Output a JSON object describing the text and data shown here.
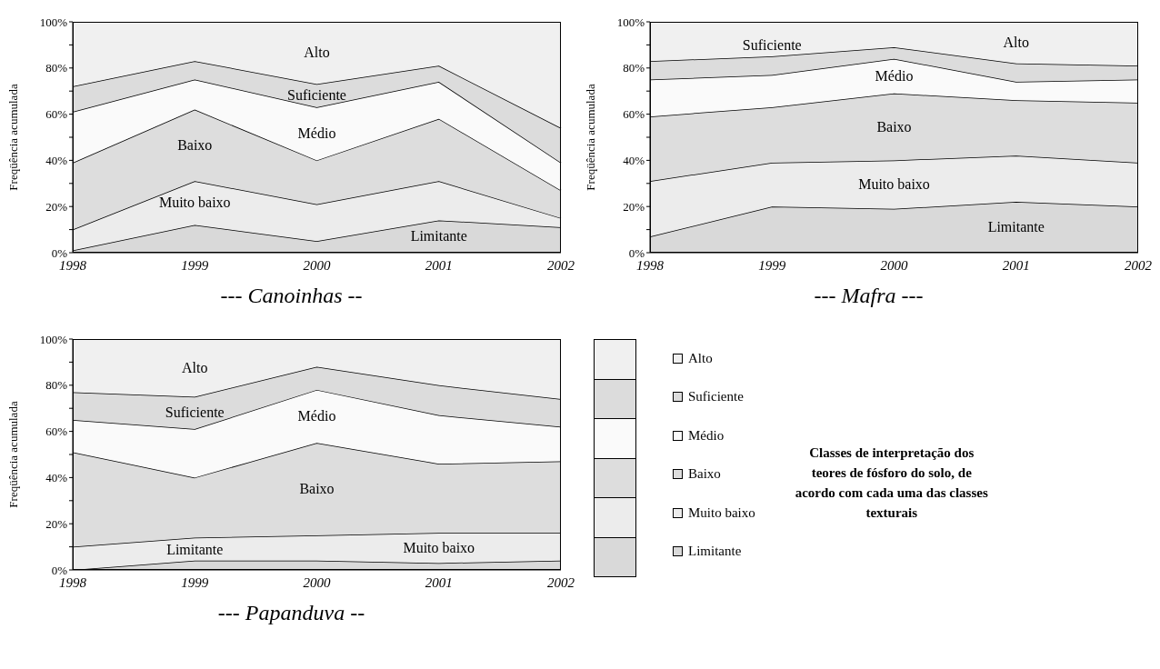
{
  "chart_data": [
    {
      "type": "area",
      "title": "--- Canoinhas --",
      "ylabel": "Freqüência acumulada",
      "stacked": true,
      "categories": [
        "1998",
        "1999",
        "2000",
        "2001",
        "2002"
      ],
      "ylim": [
        0,
        100
      ],
      "yticks": [
        {
          "value": 0,
          "label": "0%"
        },
        {
          "value": 10,
          "label": null
        },
        {
          "value": 20,
          "label": "20%"
        },
        {
          "value": 30,
          "label": null
        },
        {
          "value": 40,
          "label": "40%"
        },
        {
          "value": 50,
          "label": null
        },
        {
          "value": 60,
          "label": "60%"
        },
        {
          "value": 70,
          "label": null
        },
        {
          "value": 80,
          "label": "80%"
        },
        {
          "value": 90,
          "label": null
        },
        {
          "value": 100,
          "label": "100%"
        }
      ],
      "grid": false,
      "legend": false,
      "series": [
        {
          "name": "Limitante",
          "color": "#d9d9d9",
          "values": [
            1,
            12,
            5,
            14,
            11
          ]
        },
        {
          "name": "Muito baixo",
          "color": "#ececec",
          "values": [
            9,
            19,
            16,
            17,
            4
          ]
        },
        {
          "name": "Baixo",
          "color": "#dddddd",
          "values": [
            29,
            31,
            19,
            27,
            12
          ]
        },
        {
          "name": "Médio",
          "color": "#fafafa",
          "values": [
            22,
            13,
            23,
            16,
            12
          ]
        },
        {
          "name": "Suficiente",
          "color": "#dcdcdc",
          "values": [
            11,
            8,
            10,
            7,
            15
          ]
        },
        {
          "name": "Alto",
          "color": "#f0f0f0",
          "values": [
            28,
            17,
            27,
            19,
            46
          ]
        }
      ]
    },
    {
      "type": "area",
      "title": "--- Mafra ---",
      "ylabel": "Freqüência acumulada",
      "stacked": true,
      "categories": [
        "1998",
        "1999",
        "2000",
        "2001",
        "2002"
      ],
      "ylim": [
        0,
        100
      ],
      "yticks": [
        {
          "value": 0,
          "label": "0%"
        },
        {
          "value": 10,
          "label": null
        },
        {
          "value": 20,
          "label": "20%"
        },
        {
          "value": 30,
          "label": null
        },
        {
          "value": 40,
          "label": "40%"
        },
        {
          "value": 50,
          "label": null
        },
        {
          "value": 60,
          "label": "60%"
        },
        {
          "value": 70,
          "label": null
        },
        {
          "value": 80,
          "label": "80%"
        },
        {
          "value": 90,
          "label": null
        },
        {
          "value": 100,
          "label": "100%"
        }
      ],
      "grid": false,
      "legend": false,
      "series": [
        {
          "name": "Limitante",
          "color": "#d9d9d9",
          "values": [
            7,
            20,
            19,
            22,
            20
          ]
        },
        {
          "name": "Muito baixo",
          "color": "#ececec",
          "values": [
            24,
            19,
            21,
            20,
            19
          ]
        },
        {
          "name": "Baixo",
          "color": "#dddddd",
          "values": [
            28,
            24,
            29,
            24,
            26
          ]
        },
        {
          "name": "Médio",
          "color": "#fafafa",
          "values": [
            16,
            14,
            15,
            8,
            10
          ]
        },
        {
          "name": "Suficiente",
          "color": "#dcdcdc",
          "values": [
            8,
            8,
            5,
            8,
            6
          ]
        },
        {
          "name": "Alto",
          "color": "#f0f0f0",
          "values": [
            17,
            15,
            11,
            18,
            19
          ]
        }
      ]
    },
    {
      "type": "area",
      "title": "--- Papanduva --",
      "ylabel": "Freqüência acumulada",
      "stacked": true,
      "categories": [
        "1998",
        "1999",
        "2000",
        "2001",
        "2002"
      ],
      "ylim": [
        0,
        100
      ],
      "yticks": [
        {
          "value": 0,
          "label": "0%"
        },
        {
          "value": 10,
          "label": null
        },
        {
          "value": 20,
          "label": "20%"
        },
        {
          "value": 30,
          "label": null
        },
        {
          "value": 40,
          "label": "40%"
        },
        {
          "value": 50,
          "label": null
        },
        {
          "value": 60,
          "label": "60%"
        },
        {
          "value": 70,
          "label": null
        },
        {
          "value": 80,
          "label": "80%"
        },
        {
          "value": 90,
          "label": null
        },
        {
          "value": 100,
          "label": "100%"
        }
      ],
      "grid": false,
      "legend": "right",
      "annotations": [
        "Classes de interpretação dos teores de fósforo do solo, de acordo com cada uma das classes texturais"
      ],
      "series": [
        {
          "name": "Limitante",
          "color": "#d9d9d9",
          "values": [
            0,
            4,
            4,
            3,
            4
          ]
        },
        {
          "name": "Muito baixo",
          "color": "#ececec",
          "values": [
            10,
            10,
            11,
            13,
            12
          ]
        },
        {
          "name": "Baixo",
          "color": "#dddddd",
          "values": [
            41,
            26,
            40,
            30,
            31
          ]
        },
        {
          "name": "Médio",
          "color": "#fafafa",
          "values": [
            14,
            21,
            23,
            21,
            15
          ]
        },
        {
          "name": "Suficiente",
          "color": "#dcdcdc",
          "values": [
            12,
            14,
            10,
            13,
            12
          ]
        },
        {
          "name": "Alto",
          "color": "#f0f0f0",
          "values": [
            23,
            25,
            12,
            20,
            26
          ]
        }
      ]
    }
  ]
}
